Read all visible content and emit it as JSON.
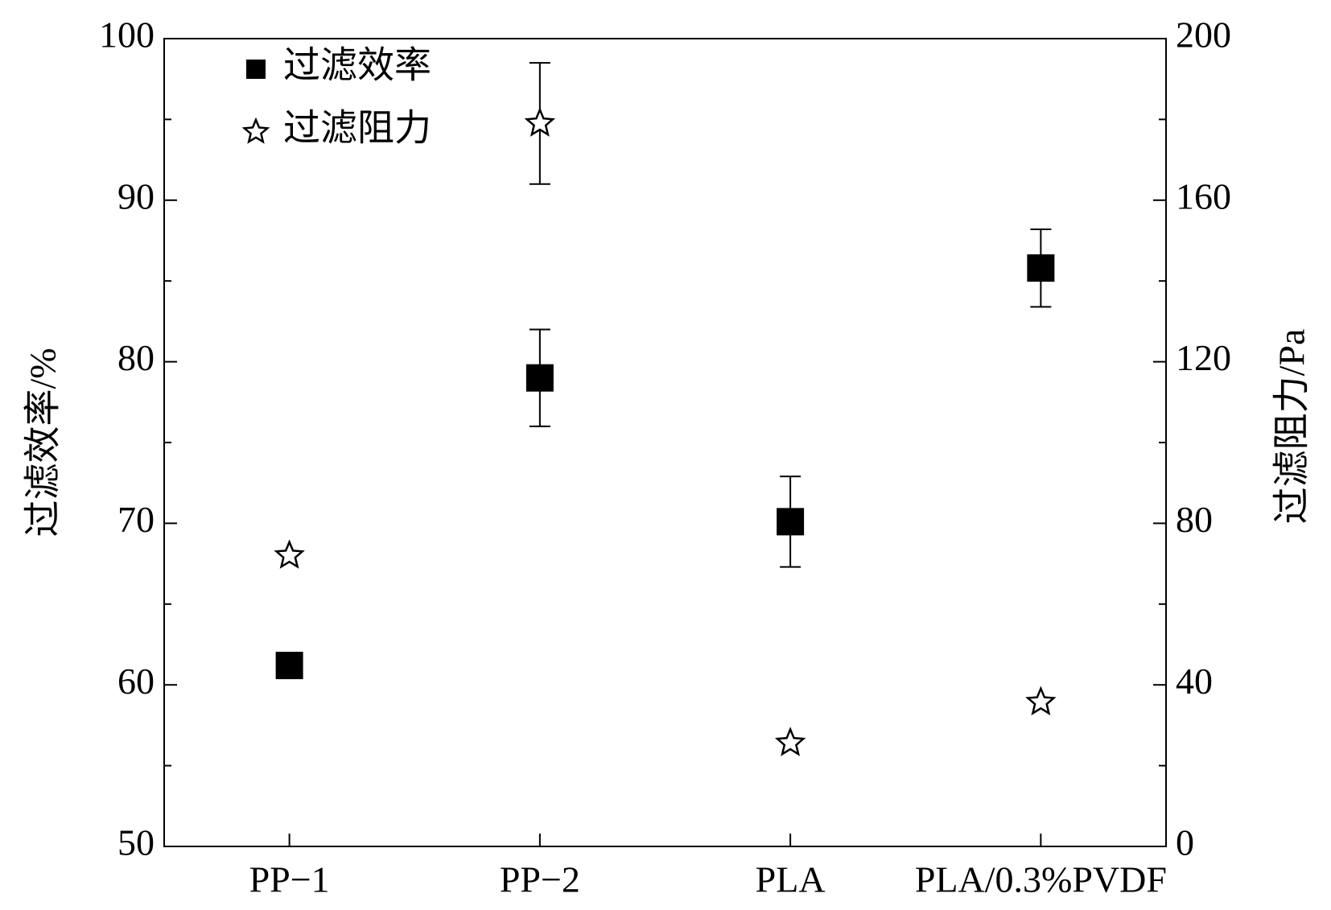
{
  "chart_data": {
    "type": "scatter",
    "categories": [
      "PP−1",
      "PP−2",
      "PLA",
      "PLA/0.3%PVDF"
    ],
    "ylabel": "过滤效率/%",
    "y2label": "过滤阻力/Pa",
    "ylim": [
      50,
      100
    ],
    "yticks": [
      50,
      60,
      70,
      80,
      90,
      100
    ],
    "yminor_ticks": [
      55,
      65,
      75,
      85,
      95
    ],
    "y2lim": [
      0,
      200
    ],
    "y2ticks": [
      0,
      40,
      80,
      120,
      160,
      200
    ],
    "y2minor_ticks": [
      20,
      60,
      100,
      140,
      180
    ],
    "legend": "upper left",
    "series": [
      {
        "name": "过滤效率",
        "color": "#000000",
        "marker": "square",
        "values": [
          61.2,
          79.0,
          70.1,
          85.8
        ],
        "errors": [
          null,
          3.0,
          2.8,
          2.4
        ]
      },
      {
        "name": "过滤阻力",
        "color": "#000000",
        "marker": "star",
        "axis": "y2",
        "values": [
          72,
          179,
          25.6,
          35.7
        ],
        "errors": [
          null,
          15,
          null,
          null
        ]
      }
    ]
  }
}
